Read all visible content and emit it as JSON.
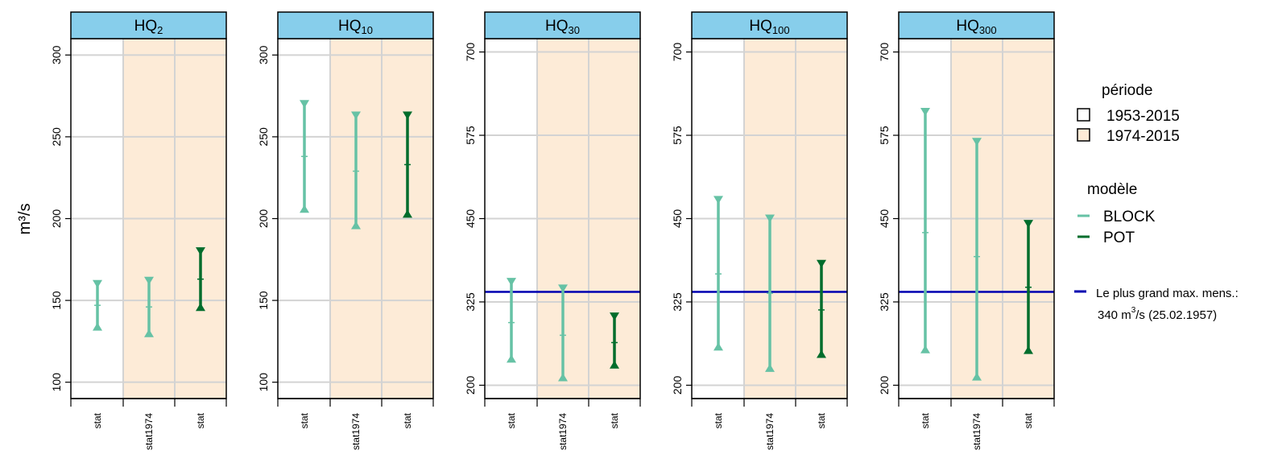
{
  "ylabel": "m³/s",
  "colors": {
    "strip_fill": "#87CEEB",
    "shade_1974": "#FDEBD7",
    "grid": "#D3D3D3",
    "block": "#66C2A5",
    "pot": "#006D2C",
    "record_line": "#0000B0"
  },
  "chart_data": [
    {
      "type": "errorbar",
      "panel": "HQ2",
      "title_base": "HQ",
      "title_sub": "2",
      "categories": [
        "stat",
        "stat1974",
        "stat"
      ],
      "ylim": [
        90,
        310
      ],
      "yticks": [
        100,
        150,
        200,
        250,
        300
      ],
      "series": [
        {
          "model": "BLOCK",
          "period": "1953-2015",
          "low": 134,
          "mid": 147,
          "high": 160
        },
        {
          "model": "BLOCK",
          "period": "1974-2015",
          "low": 130,
          "mid": 146,
          "high": 162
        },
        {
          "model": "POT",
          "period": "1974-2015",
          "low": 146,
          "mid": 163,
          "high": 180
        }
      ],
      "reference_line": null
    },
    {
      "type": "errorbar",
      "panel": "HQ10",
      "title_base": "HQ",
      "title_sub": "10",
      "categories": [
        "stat",
        "stat1974",
        "stat"
      ],
      "ylim": [
        90,
        310
      ],
      "yticks": [
        100,
        150,
        200,
        250,
        300
      ],
      "series": [
        {
          "model": "BLOCK",
          "period": "1953-2015",
          "low": 206,
          "mid": 238,
          "high": 270
        },
        {
          "model": "BLOCK",
          "period": "1974-2015",
          "low": 196,
          "mid": 229,
          "high": 263
        },
        {
          "model": "POT",
          "period": "1974-2015",
          "low": 203,
          "mid": 233,
          "high": 263
        }
      ],
      "reference_line": null
    },
    {
      "type": "errorbar",
      "panel": "HQ30",
      "title_base": "HQ",
      "title_sub": "30",
      "categories": [
        "stat",
        "stat1974",
        "stat"
      ],
      "ylim": [
        180,
        720
      ],
      "yticks": [
        200,
        325,
        450,
        575,
        700
      ],
      "series": [
        {
          "model": "BLOCK",
          "period": "1953-2015",
          "low": 240,
          "mid": 294,
          "high": 355
        },
        {
          "model": "BLOCK",
          "period": "1974-2015",
          "low": 212,
          "mid": 275,
          "high": 345
        },
        {
          "model": "POT",
          "period": "1974-2015",
          "low": 231,
          "mid": 264,
          "high": 303
        }
      ],
      "reference_line": 340
    },
    {
      "type": "errorbar",
      "panel": "HQ100",
      "title_base": "HQ",
      "title_sub": "100",
      "categories": [
        "stat",
        "stat1974",
        "stat"
      ],
      "ylim": [
        180,
        720
      ],
      "yticks": [
        200,
        325,
        450,
        575,
        700
      ],
      "series": [
        {
          "model": "BLOCK",
          "period": "1953-2015",
          "low": 258,
          "mid": 367,
          "high": 478
        },
        {
          "model": "BLOCK",
          "period": "1974-2015",
          "low": 226,
          "mid": 338,
          "high": 450
        },
        {
          "model": "POT",
          "period": "1974-2015",
          "low": 247,
          "mid": 313,
          "high": 382
        }
      ],
      "reference_line": 340
    },
    {
      "type": "errorbar",
      "panel": "HQ300",
      "title_base": "HQ",
      "title_sub": "300",
      "categories": [
        "stat",
        "stat1974",
        "stat"
      ],
      "ylim": [
        180,
        720
      ],
      "yticks": [
        200,
        325,
        450,
        575,
        700
      ],
      "series": [
        {
          "model": "BLOCK",
          "period": "1953-2015",
          "low": 254,
          "mid": 429,
          "high": 610
        },
        {
          "model": "BLOCK",
          "period": "1974-2015",
          "low": 213,
          "mid": 393,
          "high": 565
        },
        {
          "model": "POT",
          "period": "1974-2015",
          "low": 253,
          "mid": 347,
          "high": 442
        }
      ],
      "reference_line": 340
    }
  ],
  "legend": {
    "period_title": "période",
    "periods": [
      {
        "label": "1953-2015",
        "fill": "#FFFFFF"
      },
      {
        "label": "1974-2015",
        "fill": "#FDEBD7"
      }
    ],
    "model_title": "modèle",
    "models": [
      {
        "label": "BLOCK",
        "color": "#66C2A5"
      },
      {
        "label": "POT",
        "color": "#006D2C"
      }
    ],
    "record_line1": "Le plus grand max. mens.:",
    "record_line2_value": "340 m",
    "record_line2_sup": "3",
    "record_line2_unit": "/s (25.02.1957)"
  }
}
